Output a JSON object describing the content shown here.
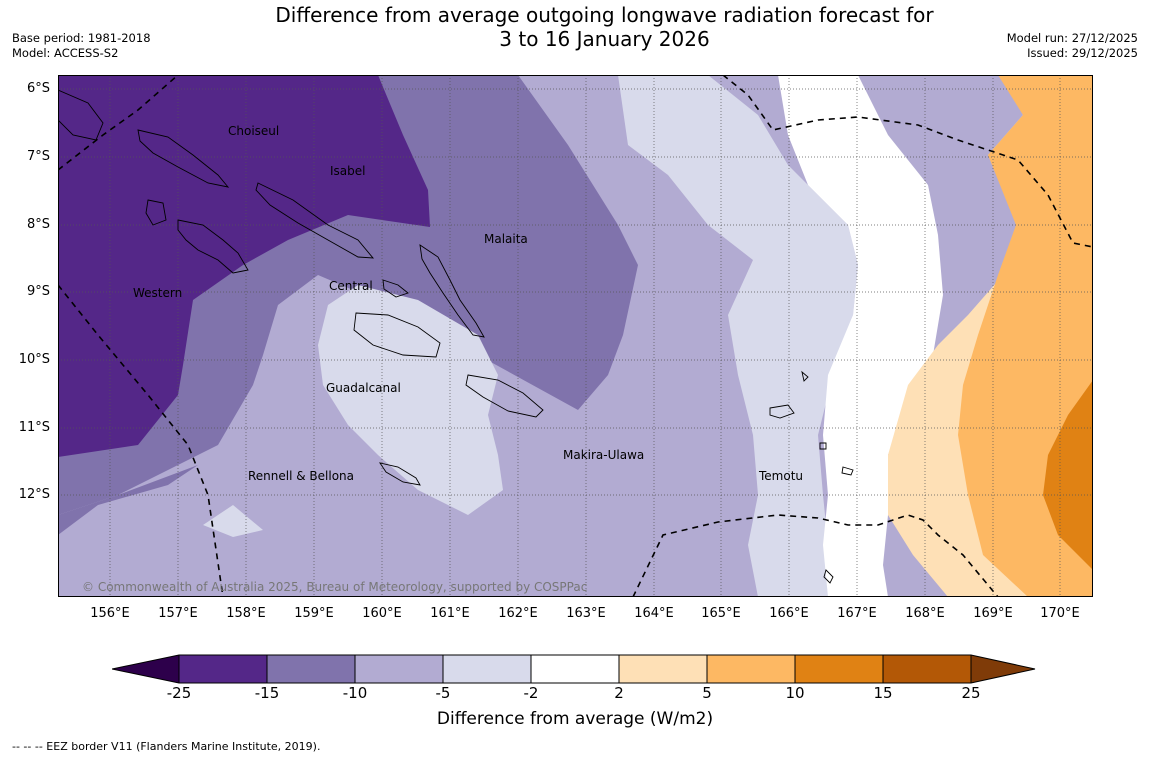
{
  "title": {
    "line1": "Difference from average outgoing longwave radiation forecast for",
    "line2": "3 to 16 January 2026"
  },
  "meta": {
    "base_period": "Base period: 1981-2018",
    "model": "Model: ACCESS-S2",
    "model_run": "Model run: 27/12/2025",
    "issued": "Issued: 29/12/2025"
  },
  "map": {
    "lat_labels": [
      "6°S",
      "7°S",
      "8°S",
      "9°S",
      "10°S",
      "11°S",
      "12°S"
    ],
    "lon_labels": [
      "156°E",
      "157°E",
      "158°E",
      "159°E",
      "160°E",
      "161°E",
      "162°E",
      "163°E",
      "164°E",
      "165°E",
      "166°E",
      "167°E",
      "168°E",
      "169°E",
      "170°E"
    ],
    "regions": {
      "choiseul": "Choiseul",
      "isabel": "Isabel",
      "malaita": "Malaita",
      "central": "Central",
      "western": "Western",
      "guadalcanal": "Guadalcanal",
      "rennell": "Rennell & Bellona",
      "makira": "Makira-Ulawa",
      "temotu": "Temotu"
    },
    "copyright": "© Commonwealth of Australia 2025, Bureau of Meteorology, supported by COSPPac"
  },
  "colorbar": {
    "ticks": [
      "-25",
      "-15",
      "-10",
      "-5",
      "-2",
      "2",
      "5",
      "10",
      "15",
      "25"
    ],
    "colors": {
      "below_min": "#2d004b",
      "n25_15": "#542788",
      "n15_10": "#8073ac",
      "n10_5": "#b2abd2",
      "n5_2": "#d8daeb",
      "n2_2": "#ffffff",
      "p2_5": "#fee0b6",
      "p5_10": "#fdb863",
      "p10_15": "#e08214",
      "p15_25": "#b35806",
      "above_max": "#7f3b08"
    },
    "label": "Difference from average (W/m2)"
  },
  "legend": {
    "eez": "--  --  -- EEZ border V11 (Flanders Marine Institute, 2019)."
  }
}
